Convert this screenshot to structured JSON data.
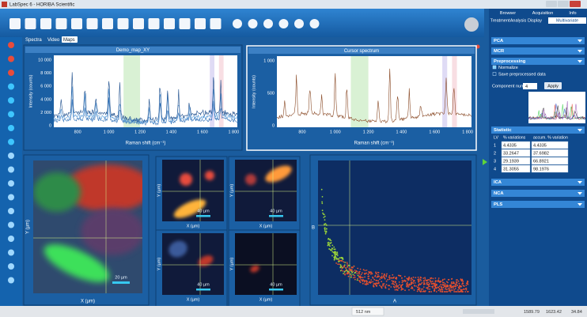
{
  "window": {
    "title": "LabSpec 6 - HORIBA Scientific"
  },
  "view_tabs": [
    "Spectra",
    "Video",
    "Maps"
  ],
  "spectrum_panels": [
    {
      "title": "Demo_map_XY",
      "y_label": "Intensity (counts)",
      "x_label": "Raman shift (cm⁻¹)",
      "yticks": [
        "10 000",
        "8 000",
        "6 000",
        "4 000",
        "2 000",
        "0"
      ],
      "xticks": [
        "800",
        "1 000",
        "1 200",
        "1 400",
        "1 600",
        "1 800"
      ]
    },
    {
      "title": "Cursor spectrum",
      "y_label": "Intensity (counts)",
      "x_label": "Raman shift (cm⁻¹)",
      "yticks": [
        "1 000",
        "500",
        "0"
      ],
      "xticks": [
        "800",
        "1 000",
        "1 200",
        "1 400",
        "1 600",
        "1 800"
      ]
    }
  ],
  "map_images": {
    "large": {
      "x_label": "X (µm)",
      "y_label": "Y (µm)",
      "scale": "20 µm"
    },
    "small": [
      {
        "x_label": "X (µm)",
        "y_label": "Y (µm)",
        "scale": "40 µm"
      },
      {
        "x_label": "X (µm)",
        "y_label": "Y (µm)",
        "scale": "40 µm"
      },
      {
        "x_label": "X (µm)",
        "y_label": "Y (µm)",
        "scale": "40 µm"
      },
      {
        "x_label": "X (µm)",
        "y_label": "Y (µm)",
        "scale": "40 µm"
      }
    ]
  },
  "scatter": {
    "x_label": "A",
    "y_label": "B"
  },
  "side_panel": {
    "tabs_top": [
      "Browser",
      "Acquisition",
      "Info"
    ],
    "tabs_bottom": [
      "Treatment",
      "Analysis",
      "Display",
      "Multivariate"
    ],
    "sections_top": [
      "PCA",
      "MCR"
    ],
    "preprocessing": {
      "title": "Preprocessing",
      "options": [
        "Normalize",
        "Save preprocessed data"
      ],
      "component_label": "Component number",
      "component_value": "4",
      "apply": "Apply"
    },
    "statistic": {
      "title": "Statistic",
      "headers": [
        "LV",
        "% variations",
        "accum. % variation"
      ],
      "rows": [
        [
          "1",
          "4.4335",
          "4.4335"
        ],
        [
          "2",
          "33.2647",
          "37.6982"
        ],
        [
          "3",
          "29.1939",
          "66.8921"
        ],
        [
          "4",
          "31.3055",
          "98.1976"
        ]
      ]
    },
    "sections_bottom": [
      "ICA",
      "NCA",
      "PLS"
    ]
  },
  "status_bar": [
    "512 nm",
    "1589.79",
    "1623.42",
    "34.84"
  ]
}
